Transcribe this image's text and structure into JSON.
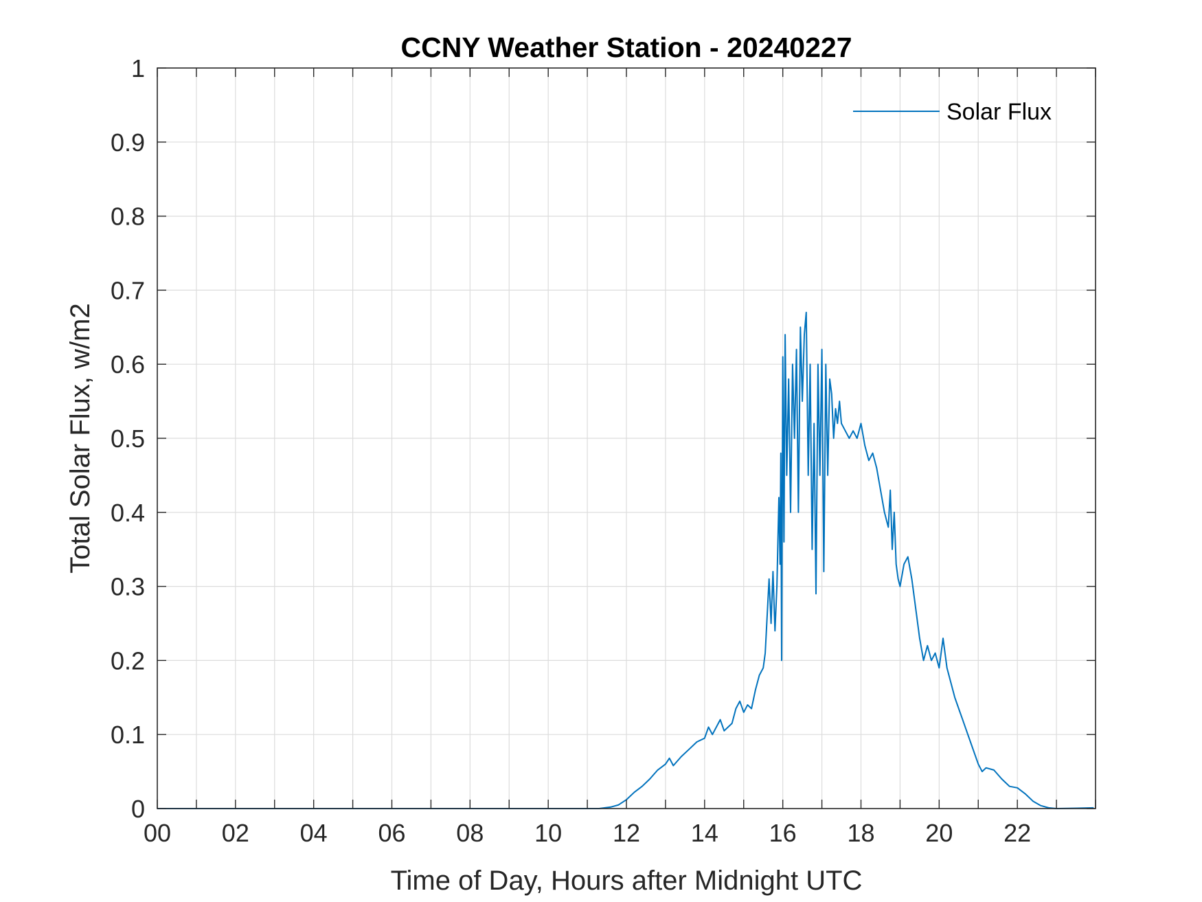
{
  "chart_data": {
    "type": "line",
    "title": "CCNY Weather Station - 20240227",
    "xlabel": "Time of Day, Hours after Midnight UTC",
    "ylabel": "Total Solar Flux, w/m2",
    "xlim": [
      0,
      24
    ],
    "ylim": [
      0,
      1
    ],
    "grid": true,
    "legend_position": "top-right",
    "x_ticks": [
      0,
      2,
      4,
      6,
      8,
      10,
      12,
      14,
      16,
      18,
      20,
      22
    ],
    "x_tick_labels": [
      "00",
      "02",
      "04",
      "06",
      "08",
      "10",
      "12",
      "14",
      "16",
      "18",
      "20",
      "22"
    ],
    "y_ticks": [
      0,
      0.1,
      0.2,
      0.3,
      0.4,
      0.5,
      0.6,
      0.7,
      0.8,
      0.9,
      1
    ],
    "y_tick_labels": [
      "0",
      "0.1",
      "0.2",
      "0.3",
      "0.4",
      "0.5",
      "0.6",
      "0.7",
      "0.8",
      "0.9",
      "1"
    ],
    "colors": {
      "series": "#0072bd",
      "axes": "#262626",
      "grid": "#dcdcdc"
    },
    "series": [
      {
        "name": "Solar Flux",
        "x": [
          0,
          11.3,
          11.6,
          11.8,
          12.0,
          12.2,
          12.4,
          12.6,
          12.8,
          13.0,
          13.1,
          13.2,
          13.4,
          13.6,
          13.8,
          14.0,
          14.1,
          14.2,
          14.4,
          14.5,
          14.6,
          14.7,
          14.8,
          14.9,
          15.0,
          15.1,
          15.2,
          15.3,
          15.4,
          15.5,
          15.55,
          15.6,
          15.65,
          15.7,
          15.75,
          15.8,
          15.85,
          15.9,
          15.93,
          15.95,
          15.97,
          16.0,
          16.03,
          16.06,
          16.1,
          16.15,
          16.2,
          16.25,
          16.3,
          16.35,
          16.4,
          16.45,
          16.5,
          16.55,
          16.6,
          16.65,
          16.7,
          16.75,
          16.8,
          16.85,
          16.9,
          16.95,
          17.0,
          17.05,
          17.1,
          17.15,
          17.2,
          17.25,
          17.3,
          17.35,
          17.4,
          17.45,
          17.5,
          17.6,
          17.7,
          17.8,
          17.9,
          18.0,
          18.1,
          18.2,
          18.3,
          18.4,
          18.5,
          18.6,
          18.7,
          18.75,
          18.8,
          18.85,
          18.9,
          18.95,
          19.0,
          19.1,
          19.2,
          19.3,
          19.4,
          19.5,
          19.6,
          19.7,
          19.8,
          19.9,
          20.0,
          20.1,
          20.2,
          20.3,
          20.4,
          20.5,
          20.6,
          20.7,
          20.8,
          20.9,
          21.0,
          21.1,
          21.2,
          21.4,
          21.6,
          21.8,
          22.0,
          22.2,
          22.4,
          22.6,
          22.8,
          23.0,
          23.5,
          23.95
        ],
        "values": [
          0,
          0,
          0.002,
          0.005,
          0.012,
          0.022,
          0.03,
          0.04,
          0.052,
          0.06,
          0.068,
          0.058,
          0.07,
          0.08,
          0.09,
          0.095,
          0.11,
          0.1,
          0.12,
          0.105,
          0.11,
          0.115,
          0.135,
          0.145,
          0.13,
          0.14,
          0.135,
          0.16,
          0.18,
          0.19,
          0.21,
          0.26,
          0.31,
          0.25,
          0.32,
          0.24,
          0.3,
          0.42,
          0.33,
          0.48,
          0.2,
          0.61,
          0.36,
          0.64,
          0.45,
          0.58,
          0.4,
          0.6,
          0.5,
          0.62,
          0.4,
          0.65,
          0.55,
          0.64,
          0.67,
          0.45,
          0.6,
          0.35,
          0.52,
          0.29,
          0.6,
          0.45,
          0.62,
          0.32,
          0.6,
          0.45,
          0.58,
          0.56,
          0.5,
          0.54,
          0.52,
          0.55,
          0.52,
          0.51,
          0.5,
          0.51,
          0.5,
          0.52,
          0.49,
          0.47,
          0.48,
          0.46,
          0.43,
          0.4,
          0.38,
          0.43,
          0.35,
          0.4,
          0.33,
          0.31,
          0.3,
          0.33,
          0.34,
          0.31,
          0.27,
          0.23,
          0.2,
          0.22,
          0.2,
          0.21,
          0.19,
          0.23,
          0.19,
          0.17,
          0.15,
          0.135,
          0.12,
          0.105,
          0.09,
          0.075,
          0.06,
          0.05,
          0.055,
          0.052,
          0.04,
          0.03,
          0.028,
          0.02,
          0.01,
          0.004,
          0.001,
          0.0,
          0.0005,
          0.001
        ]
      }
    ]
  }
}
